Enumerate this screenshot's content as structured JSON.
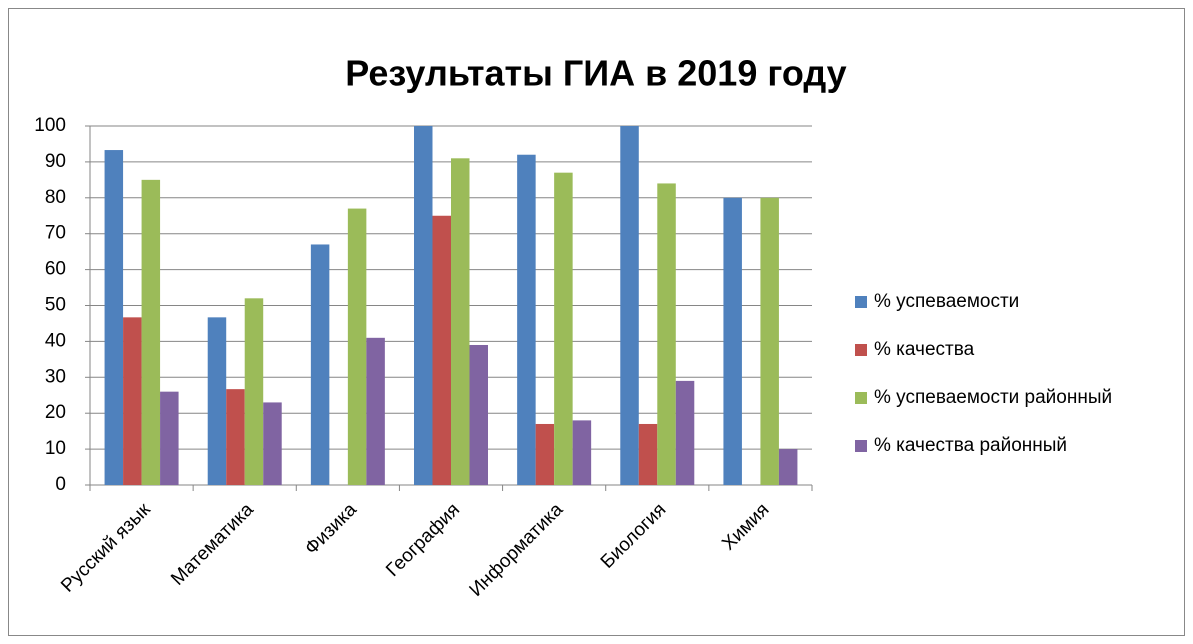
{
  "chart_data": {
    "type": "bar",
    "title": "Результаты ГИА в 2019 году",
    "categories": [
      "Русский язык",
      "Математика",
      "Физика",
      "География",
      "Информатика",
      "Биология",
      "Химия"
    ],
    "series": [
      {
        "name": "% успеваемости",
        "color": "#4f81bd",
        "values": [
          93.3,
          46.7,
          67,
          100,
          92,
          100,
          80
        ]
      },
      {
        "name": "% качества",
        "color": "#c0504d",
        "values": [
          46.7,
          26.7,
          0,
          75,
          17,
          17,
          0
        ]
      },
      {
        "name": "% успеваемости районный",
        "color": "#9bbb59",
        "values": [
          85,
          52,
          77,
          91,
          87,
          84,
          80
        ]
      },
      {
        "name": "% качества районный",
        "color": "#8064a2",
        "values": [
          26,
          23,
          41,
          39,
          18,
          29,
          10
        ]
      }
    ],
    "ylim": [
      0,
      100
    ],
    "yticks": [
      0,
      10,
      20,
      30,
      40,
      50,
      60,
      70,
      80,
      90,
      100
    ],
    "grid": true,
    "legend": "right"
  }
}
